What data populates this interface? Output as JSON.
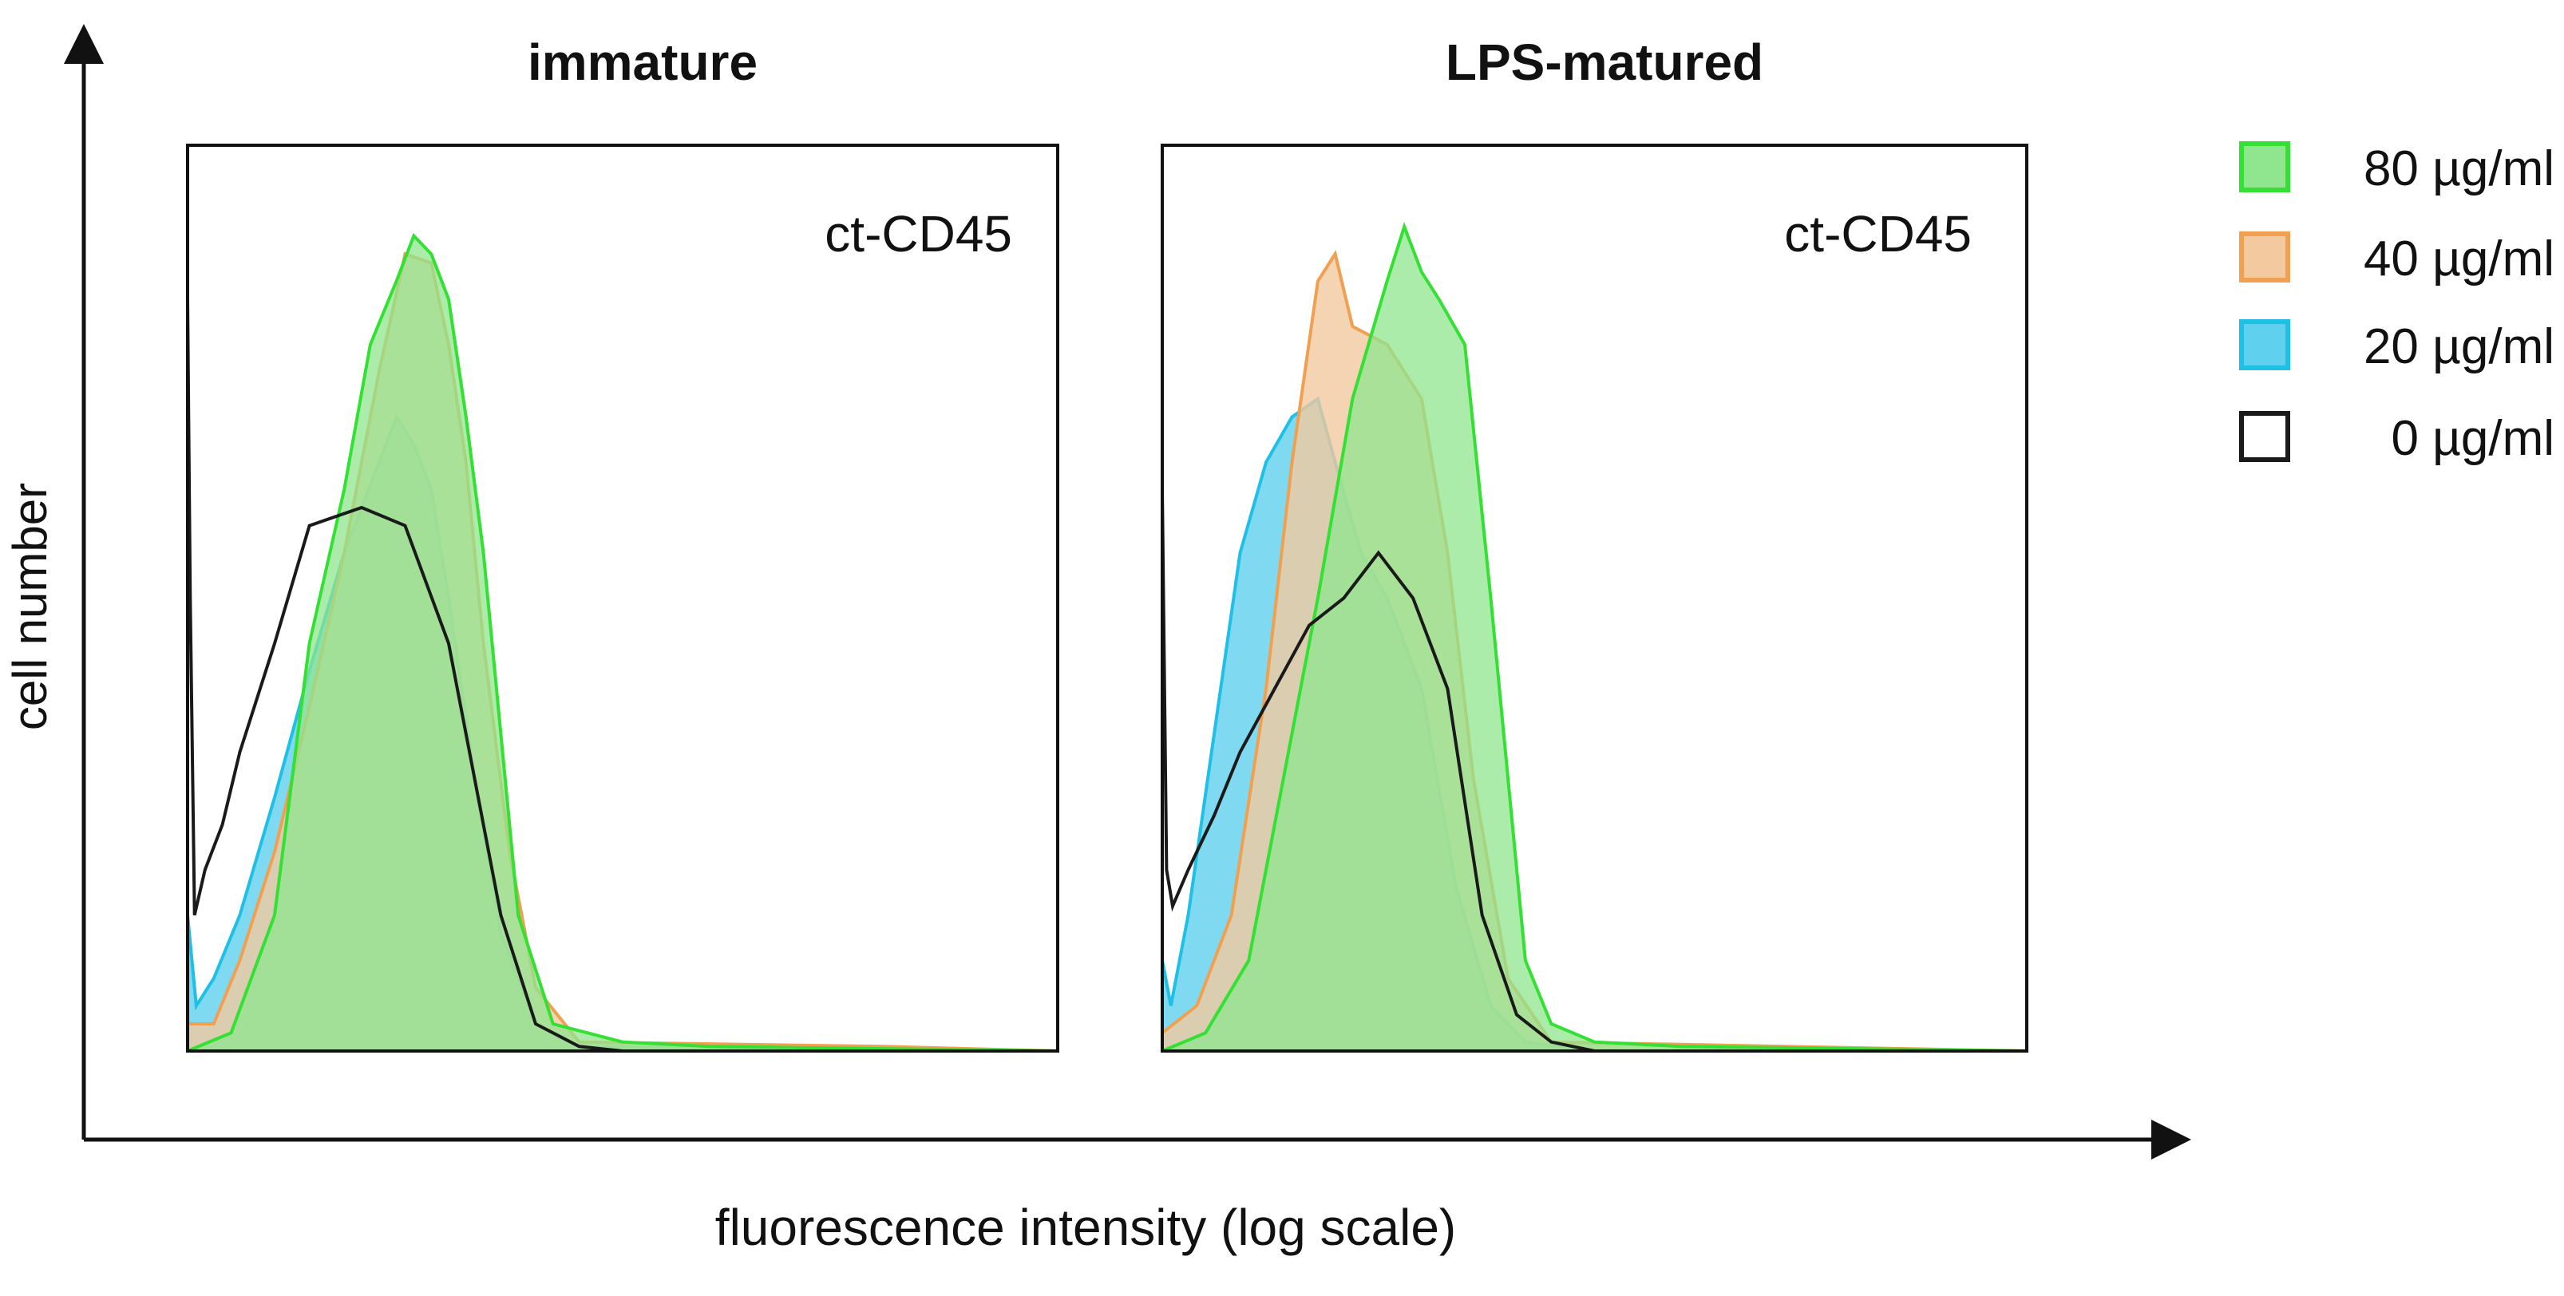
{
  "chart_data": {
    "type": "area",
    "description_kind": "flow-cytometry histograms",
    "xlabel": "fluorescence intensity (log scale)",
    "ylabel": "cell number",
    "xlim": [
      0,
      1
    ],
    "ylim": [
      0,
      1
    ],
    "legend": {
      "placement": "right",
      "entries": [
        {
          "label": "80 µg/ml",
          "color": "#33e033",
          "fill": "#8fe68f"
        },
        {
          "label": "40 µg/ml",
          "color": "#f0a050",
          "fill": "#f3c9a0"
        },
        {
          "label": "20 µg/ml",
          "color": "#1fbfe6",
          "fill": "#5fd0ee"
        },
        {
          "label": "0 µg/ml",
          "color": "#1a1a1a",
          "fill": "none"
        }
      ]
    },
    "panels": [
      {
        "title": "immature",
        "marker": "ct-CD45",
        "series": [
          {
            "name": "0 µg/ml",
            "x": [
              0,
              0.003,
              0.008,
              0.02,
              0.04,
              0.06,
              0.1,
              0.14,
              0.2,
              0.25,
              0.3,
              0.33,
              0.36,
              0.4,
              0.45,
              0.5,
              1.0
            ],
            "y": [
              0.83,
              0.5,
              0.15,
              0.2,
              0.25,
              0.33,
              0.45,
              0.58,
              0.6,
              0.58,
              0.45,
              0.3,
              0.15,
              0.03,
              0.005,
              0,
              0
            ]
          },
          {
            "name": "20 µg/ml",
            "x": [
              0,
              0.01,
              0.03,
              0.06,
              0.1,
              0.14,
              0.18,
              0.22,
              0.24,
              0.26,
              0.28,
              0.3,
              0.33,
              0.36,
              0.4,
              0.45,
              1.0
            ],
            "y": [
              0.15,
              0.05,
              0.08,
              0.15,
              0.28,
              0.42,
              0.55,
              0.65,
              0.7,
              0.67,
              0.62,
              0.5,
              0.3,
              0.13,
              0.03,
              0.005,
              0
            ]
          },
          {
            "name": "40 µg/ml",
            "x": [
              0,
              0.03,
              0.06,
              0.1,
              0.14,
              0.18,
              0.22,
              0.25,
              0.28,
              0.3,
              0.32,
              0.34,
              0.37,
              0.4,
              0.45,
              0.8,
              1.0
            ],
            "y": [
              0.03,
              0.03,
              0.1,
              0.22,
              0.38,
              0.55,
              0.75,
              0.88,
              0.87,
              0.78,
              0.65,
              0.45,
              0.22,
              0.07,
              0.01,
              0.005,
              0
            ]
          },
          {
            "name": "80 µg/ml",
            "x": [
              0,
              0.05,
              0.1,
              0.14,
              0.18,
              0.21,
              0.24,
              0.26,
              0.28,
              0.3,
              0.32,
              0.34,
              0.36,
              0.38,
              0.42,
              0.5,
              0.6,
              1.0
            ],
            "y": [
              0,
              0.02,
              0.15,
              0.45,
              0.62,
              0.78,
              0.85,
              0.9,
              0.88,
              0.83,
              0.7,
              0.55,
              0.35,
              0.15,
              0.03,
              0.01,
              0.005,
              0
            ]
          }
        ]
      },
      {
        "title": "LPS-matured",
        "marker": "ct-CD45",
        "series": [
          {
            "name": "0 µg/ml",
            "x": [
              0,
              0.005,
              0.012,
              0.03,
              0.06,
              0.09,
              0.13,
              0.17,
              0.21,
              0.25,
              0.29,
              0.33,
              0.37,
              0.41,
              0.45,
              0.5,
              1.0
            ],
            "y": [
              0.62,
              0.2,
              0.16,
              0.2,
              0.26,
              0.33,
              0.4,
              0.47,
              0.5,
              0.55,
              0.5,
              0.4,
              0.15,
              0.04,
              0.01,
              0,
              0
            ]
          },
          {
            "name": "20 µg/ml",
            "x": [
              0,
              0.01,
              0.03,
              0.06,
              0.09,
              0.12,
              0.15,
              0.18,
              0.2,
              0.23,
              0.26,
              0.3,
              0.34,
              0.38,
              0.42,
              0.5,
              1.0
            ],
            "y": [
              0.1,
              0.05,
              0.15,
              0.35,
              0.55,
              0.65,
              0.7,
              0.72,
              0.65,
              0.55,
              0.5,
              0.4,
              0.18,
              0.05,
              0.01,
              0,
              0
            ]
          },
          {
            "name": "40 µg/ml",
            "x": [
              0,
              0.04,
              0.08,
              0.12,
              0.15,
              0.18,
              0.2,
              0.22,
              0.26,
              0.3,
              0.33,
              0.36,
              0.4,
              0.45,
              1.0
            ],
            "y": [
              0.02,
              0.05,
              0.15,
              0.4,
              0.65,
              0.85,
              0.88,
              0.8,
              0.78,
              0.72,
              0.55,
              0.3,
              0.08,
              0.01,
              0
            ]
          },
          {
            "name": "80 µg/ml",
            "x": [
              0,
              0.05,
              0.1,
              0.14,
              0.18,
              0.22,
              0.26,
              0.28,
              0.3,
              0.32,
              0.35,
              0.38,
              0.42,
              0.45,
              0.5,
              0.6,
              1.0
            ],
            "y": [
              0,
              0.02,
              0.1,
              0.3,
              0.5,
              0.72,
              0.85,
              0.91,
              0.86,
              0.83,
              0.78,
              0.5,
              0.1,
              0.03,
              0.01,
              0.005,
              0
            ]
          }
        ]
      }
    ]
  }
}
